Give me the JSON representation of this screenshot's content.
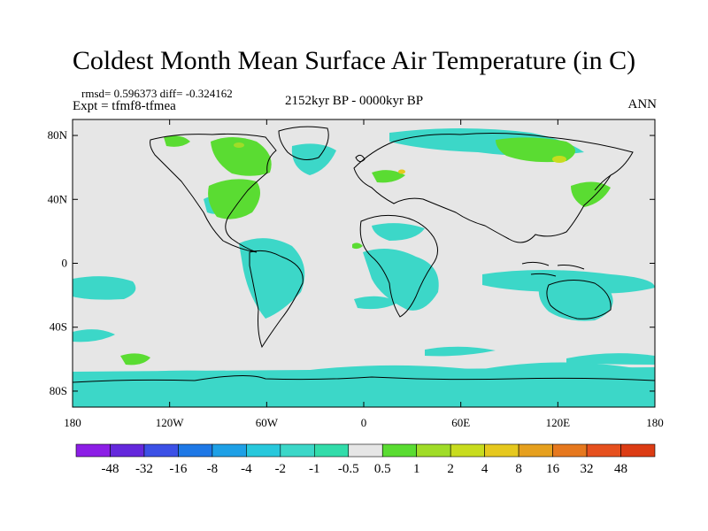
{
  "title": "Coldest Month Mean Surface Air Temperature (in C)",
  "stats_line": "rmsd= 0.596373 diff= -0.324162",
  "experiment": "Expt = tfmf8-tfmea",
  "period": "2152kyr BP - 0000kyr BP",
  "season": "ANN",
  "map": {
    "projection": "cylindrical equidistant",
    "lon_range": [
      -180,
      180
    ],
    "lat_range": [
      -90,
      90
    ],
    "background_color": "#e6e6e6",
    "lat_ticks": [
      {
        "value": 80,
        "label": "80N"
      },
      {
        "value": 40,
        "label": "40N"
      },
      {
        "value": 0,
        "label": "0"
      },
      {
        "value": -40,
        "label": "40S"
      },
      {
        "value": -80,
        "label": "80S"
      }
    ],
    "lon_ticks": [
      {
        "value": -180,
        "label": "180"
      },
      {
        "value": -120,
        "label": "120W"
      },
      {
        "value": -60,
        "label": "60W"
      },
      {
        "value": 0,
        "label": "0"
      },
      {
        "value": 60,
        "label": "60E"
      },
      {
        "value": 120,
        "label": "120E"
      },
      {
        "value": 180,
        "label": "180"
      }
    ]
  },
  "colorbar": {
    "colors": [
      "#8c1ee6",
      "#6428dc",
      "#3c50e6",
      "#1e78e6",
      "#1ea0e6",
      "#28c8dc",
      "#3cd7c8",
      "#32dcaa",
      "#e6e6e6",
      "#5adc32",
      "#a0dc28",
      "#c8dc1e",
      "#e6c81e",
      "#e6a01e",
      "#e6781e",
      "#e6501e",
      "#dc3c14"
    ],
    "labels": [
      "-48",
      "-32",
      "-16",
      "-8",
      "-4",
      "-2",
      "-1",
      "-0.5",
      "0.5",
      "1",
      "2",
      "4",
      "8",
      "16",
      "32",
      "48"
    ]
  }
}
